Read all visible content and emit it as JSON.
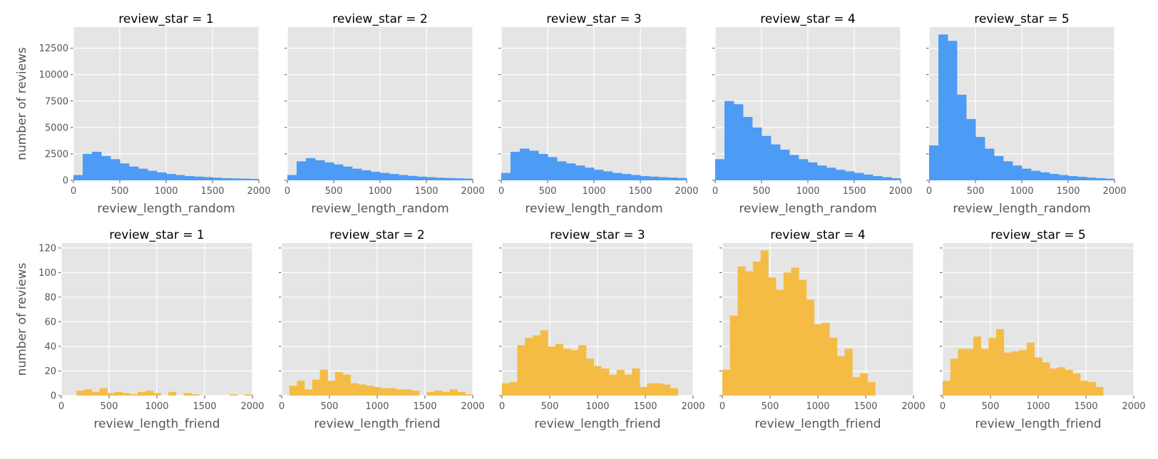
{
  "chart_data": [
    {
      "type": "bar",
      "title": "review_star = 1",
      "xlabel": "review_length_random",
      "ylabel": "number of reviews",
      "xlim": [
        0,
        2000
      ],
      "ylim": [
        0,
        14500
      ],
      "xticks": [
        0,
        500,
        1000,
        1500,
        2000
      ],
      "yticks": [
        0,
        2500,
        5000,
        7500,
        10000,
        12500
      ],
      "bin_start": 0,
      "bin_width": 100,
      "color": "#4c9bf5",
      "values": [
        500,
        2500,
        2700,
        2300,
        2000,
        1600,
        1300,
        1100,
        900,
        750,
        600,
        500,
        400,
        350,
        300,
        250,
        200,
        180,
        160,
        130
      ]
    },
    {
      "type": "bar",
      "title": "review_star = 2",
      "xlabel": "review_length_random",
      "ylabel": "",
      "xlim": [
        0,
        2000
      ],
      "ylim": [
        0,
        14500
      ],
      "xticks": [
        0,
        500,
        1000,
        1500,
        2000
      ],
      "yticks": [
        0,
        2500,
        5000,
        7500,
        10000,
        12500
      ],
      "bin_start": 0,
      "bin_width": 100,
      "color": "#4c9bf5",
      "values": [
        500,
        1800,
        2100,
        1900,
        1700,
        1500,
        1300,
        1100,
        950,
        800,
        700,
        600,
        500,
        420,
        350,
        300,
        250,
        220,
        190,
        160
      ]
    },
    {
      "type": "bar",
      "title": "review_star = 3",
      "xlabel": "review_length_random",
      "ylabel": "",
      "xlim": [
        0,
        2000
      ],
      "ylim": [
        0,
        14500
      ],
      "xticks": [
        0,
        500,
        1000,
        1500,
        2000
      ],
      "yticks": [
        0,
        2500,
        5000,
        7500,
        10000,
        12500
      ],
      "bin_start": 0,
      "bin_width": 100,
      "color": "#4c9bf5",
      "values": [
        700,
        2700,
        3000,
        2800,
        2500,
        2200,
        1800,
        1600,
        1400,
        1200,
        1000,
        850,
        700,
        600,
        500,
        400,
        350,
        300,
        260,
        220
      ]
    },
    {
      "type": "bar",
      "title": "review_star = 4",
      "xlabel": "review_length_random",
      "ylabel": "",
      "xlim": [
        0,
        2000
      ],
      "ylim": [
        0,
        14500
      ],
      "xticks": [
        0,
        500,
        1000,
        1500,
        2000
      ],
      "yticks": [
        0,
        2500,
        5000,
        7500,
        10000,
        12500
      ],
      "bin_start": 0,
      "bin_width": 100,
      "color": "#4c9bf5",
      "values": [
        2000,
        7500,
        7200,
        6000,
        5000,
        4200,
        3400,
        2900,
        2400,
        2000,
        1700,
        1400,
        1200,
        1000,
        850,
        700,
        550,
        400,
        300,
        200
      ]
    },
    {
      "type": "bar",
      "title": "review_star = 5",
      "xlabel": "review_length_random",
      "ylabel": "",
      "xlim": [
        0,
        2000
      ],
      "ylim": [
        0,
        14500
      ],
      "xticks": [
        0,
        500,
        1000,
        1500,
        2000
      ],
      "yticks": [
        0,
        2500,
        5000,
        7500,
        10000,
        12500
      ],
      "bin_start": 0,
      "bin_width": 100,
      "color": "#4c9bf5",
      "values": [
        3300,
        13800,
        13200,
        8100,
        5800,
        4100,
        3000,
        2300,
        1800,
        1400,
        1100,
        900,
        750,
        600,
        500,
        400,
        330,
        260,
        200,
        150
      ]
    },
    {
      "type": "bar",
      "title": "review_star = 1",
      "xlabel": "review_length_friend",
      "ylabel": "number of reviews",
      "xlim": [
        0,
        2000
      ],
      "ylim": [
        0,
        124
      ],
      "xticks": [
        0,
        500,
        1000,
        1500,
        2000
      ],
      "yticks": [
        0,
        20,
        40,
        60,
        80,
        100,
        120
      ],
      "bin_start": 0,
      "bin_width": 80,
      "color": "#f5bc45",
      "values": [
        0,
        0,
        4,
        5,
        3,
        6,
        2,
        3,
        2,
        1,
        3,
        4,
        2,
        0,
        3,
        0,
        2,
        1,
        0,
        0,
        0,
        0,
        1,
        0,
        1
      ]
    },
    {
      "type": "bar",
      "title": "review_star = 2",
      "xlabel": "review_length_friend",
      "ylabel": "",
      "xlim": [
        0,
        2000
      ],
      "ylim": [
        0,
        124
      ],
      "xticks": [
        0,
        500,
        1000,
        1500,
        2000
      ],
      "yticks": [
        0,
        20,
        40,
        60,
        80,
        100,
        120
      ],
      "bin_start": 0,
      "bin_width": 80,
      "color": "#f5bc45",
      "values": [
        0,
        8,
        12,
        5,
        13,
        21,
        12,
        19,
        17,
        10,
        9,
        8,
        7,
        6,
        6,
        5,
        5,
        4,
        0,
        3,
        4,
        3,
        5,
        3,
        1
      ]
    },
    {
      "type": "bar",
      "title": "review_star = 3",
      "xlabel": "review_length_friend",
      "ylabel": "",
      "xlim": [
        0,
        2000
      ],
      "ylim": [
        0,
        124
      ],
      "xticks": [
        0,
        500,
        1000,
        1500,
        2000
      ],
      "yticks": [
        0,
        20,
        40,
        60,
        80,
        100,
        120
      ],
      "bin_start": 0,
      "bin_width": 80,
      "color": "#f5bc45",
      "values": [
        10,
        11,
        41,
        47,
        49,
        53,
        40,
        42,
        38,
        37,
        41,
        30,
        24,
        22,
        17,
        21,
        17,
        22,
        7,
        10,
        10,
        9,
        6,
        0,
        0
      ]
    },
    {
      "type": "bar",
      "title": "review_star = 4",
      "xlabel": "review_length_friend",
      "ylabel": "",
      "xlim": [
        0,
        2000
      ],
      "ylim": [
        0,
        124
      ],
      "xticks": [
        0,
        500,
        1000,
        1500,
        2000
      ],
      "yticks": [
        0,
        20,
        40,
        60,
        80,
        100,
        120
      ],
      "bin_start": 0,
      "bin_width": 80,
      "color": "#f5bc45",
      "values": [
        21,
        65,
        105,
        101,
        109,
        118,
        96,
        86,
        100,
        104,
        94,
        78,
        58,
        59,
        47,
        32,
        38,
        15,
        18,
        11,
        0,
        0,
        0,
        0,
        0
      ]
    },
    {
      "type": "bar",
      "title": "review_star = 5",
      "xlabel": "review_length_friend",
      "ylabel": "",
      "xlim": [
        0,
        2000
      ],
      "ylim": [
        0,
        124
      ],
      "xticks": [
        0,
        500,
        1000,
        1500,
        2000
      ],
      "yticks": [
        0,
        20,
        40,
        60,
        80,
        100,
        120
      ],
      "bin_start": 0,
      "bin_width": 80,
      "color": "#f5bc45",
      "values": [
        12,
        30,
        38,
        38,
        48,
        38,
        47,
        54,
        35,
        36,
        37,
        43,
        31,
        27,
        22,
        23,
        21,
        18,
        12,
        11,
        7,
        0,
        0,
        0,
        0
      ]
    }
  ]
}
